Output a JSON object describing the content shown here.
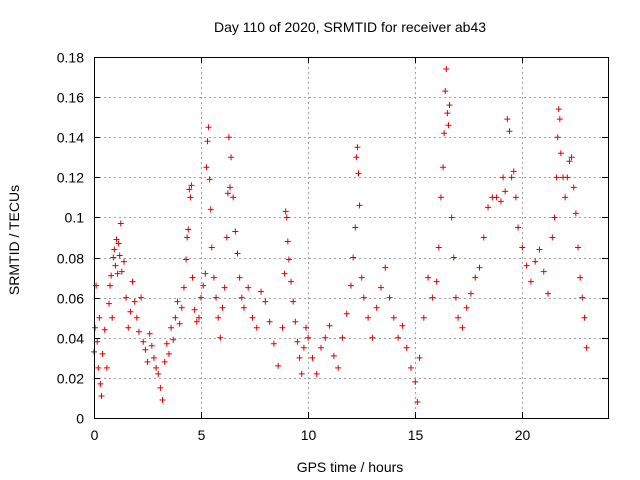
{
  "chart_data": {
    "type": "scatter",
    "title": "Day 110 of 2020, SRMTID for receiver ab43",
    "xlabel": "GPS time / hours",
    "ylabel": "SRMTID / TECUs",
    "xlim": [
      0,
      24
    ],
    "ylim": [
      0,
      0.18
    ],
    "xticks": [
      0,
      5,
      10,
      15,
      20
    ],
    "xtick_labels": [
      "0",
      "5",
      "10",
      "15",
      "20"
    ],
    "yticks": [
      0,
      0.02,
      0.04,
      0.06,
      0.08,
      0.1,
      0.12,
      0.14,
      0.16,
      0.18
    ],
    "ytick_labels": [
      "0",
      "0.02",
      "0.04",
      "0.06",
      "0.08",
      "0.1",
      "0.12",
      "0.14",
      "0.16",
      "0.18"
    ],
    "grid": true,
    "marker": "+",
    "color": "#e00000",
    "series": [
      {
        "name": "SRMTID",
        "points": [
          [
            0.0,
            0.033
          ],
          [
            0.05,
            0.045
          ],
          [
            0.1,
            0.066
          ],
          [
            0.15,
            0.038
          ],
          [
            0.2,
            0.025
          ],
          [
            0.25,
            0.05
          ],
          [
            0.3,
            0.017
          ],
          [
            0.35,
            0.011
          ],
          [
            0.4,
            0.032
          ],
          [
            0.5,
            0.044
          ],
          [
            0.6,
            0.025
          ],
          [
            0.7,
            0.057
          ],
          [
            0.75,
            0.066
          ],
          [
            0.8,
            0.071
          ],
          [
            0.85,
            0.05
          ],
          [
            0.9,
            0.08
          ],
          [
            0.95,
            0.084
          ],
          [
            1.0,
            0.076
          ],
          [
            1.05,
            0.089
          ],
          [
            1.1,
            0.072
          ],
          [
            1.15,
            0.087
          ],
          [
            1.2,
            0.081
          ],
          [
            1.25,
            0.097
          ],
          [
            1.3,
            0.073
          ],
          [
            1.4,
            0.078
          ],
          [
            1.5,
            0.06
          ],
          [
            1.6,
            0.045
          ],
          [
            1.7,
            0.053
          ],
          [
            1.8,
            0.068
          ],
          [
            1.9,
            0.058
          ],
          [
            2.0,
            0.05
          ],
          [
            2.1,
            0.043
          ],
          [
            2.2,
            0.06
          ],
          [
            2.3,
            0.038
          ],
          [
            2.4,
            0.034
          ],
          [
            2.5,
            0.028
          ],
          [
            2.6,
            0.042
          ],
          [
            2.7,
            0.036
          ],
          [
            2.8,
            0.03
          ],
          [
            2.9,
            0.025
          ],
          [
            3.0,
            0.022
          ],
          [
            3.1,
            0.015
          ],
          [
            3.2,
            0.009
          ],
          [
            3.3,
            0.028
          ],
          [
            3.4,
            0.037
          ],
          [
            3.5,
            0.032
          ],
          [
            3.6,
            0.045
          ],
          [
            3.7,
            0.039
          ],
          [
            3.8,
            0.05
          ],
          [
            3.9,
            0.058
          ],
          [
            4.0,
            0.047
          ],
          [
            4.1,
            0.055
          ],
          [
            4.2,
            0.065
          ],
          [
            4.3,
            0.079
          ],
          [
            4.35,
            0.09
          ],
          [
            4.4,
            0.094
          ],
          [
            4.45,
            0.114
          ],
          [
            4.5,
            0.11
          ],
          [
            4.55,
            0.116
          ],
          [
            4.6,
            0.07
          ],
          [
            4.7,
            0.054
          ],
          [
            4.8,
            0.048
          ],
          [
            4.9,
            0.05
          ],
          [
            5.0,
            0.06
          ],
          [
            5.1,
            0.066
          ],
          [
            5.2,
            0.072
          ],
          [
            5.25,
            0.125
          ],
          [
            5.3,
            0.138
          ],
          [
            5.35,
            0.145
          ],
          [
            5.4,
            0.119
          ],
          [
            5.45,
            0.104
          ],
          [
            5.5,
            0.085
          ],
          [
            5.6,
            0.07
          ],
          [
            5.7,
            0.06
          ],
          [
            5.8,
            0.05
          ],
          [
            5.9,
            0.04
          ],
          [
            6.0,
            0.055
          ],
          [
            6.1,
            0.065
          ],
          [
            6.2,
            0.09
          ],
          [
            6.25,
            0.112
          ],
          [
            6.3,
            0.14
          ],
          [
            6.35,
            0.115
          ],
          [
            6.4,
            0.13
          ],
          [
            6.5,
            0.11
          ],
          [
            6.6,
            0.093
          ],
          [
            6.7,
            0.082
          ],
          [
            6.8,
            0.07
          ],
          [
            6.9,
            0.06
          ],
          [
            7.0,
            0.055
          ],
          [
            7.2,
            0.065
          ],
          [
            7.4,
            0.05
          ],
          [
            7.6,
            0.045
          ],
          [
            7.8,
            0.063
          ],
          [
            8.0,
            0.058
          ],
          [
            8.2,
            0.048
          ],
          [
            8.4,
            0.037
          ],
          [
            8.6,
            0.026
          ],
          [
            8.8,
            0.045
          ],
          [
            8.9,
            0.072
          ],
          [
            8.95,
            0.103
          ],
          [
            9.0,
            0.1
          ],
          [
            9.05,
            0.088
          ],
          [
            9.1,
            0.079
          ],
          [
            9.2,
            0.068
          ],
          [
            9.3,
            0.058
          ],
          [
            9.4,
            0.048
          ],
          [
            9.5,
            0.038
          ],
          [
            9.6,
            0.03
          ],
          [
            9.7,
            0.022
          ],
          [
            9.8,
            0.035
          ],
          [
            9.9,
            0.045
          ],
          [
            10.0,
            0.04
          ],
          [
            10.2,
            0.03
          ],
          [
            10.4,
            0.022
          ],
          [
            10.6,
            0.035
          ],
          [
            10.8,
            0.04
          ],
          [
            11.0,
            0.046
          ],
          [
            11.2,
            0.031
          ],
          [
            11.4,
            0.025
          ],
          [
            11.6,
            0.04
          ],
          [
            11.8,
            0.052
          ],
          [
            12.0,
            0.066
          ],
          [
            12.1,
            0.08
          ],
          [
            12.2,
            0.095
          ],
          [
            12.25,
            0.13
          ],
          [
            12.3,
            0.135
          ],
          [
            12.35,
            0.122
          ],
          [
            12.4,
            0.106
          ],
          [
            12.5,
            0.07
          ],
          [
            12.6,
            0.06
          ],
          [
            12.8,
            0.05
          ],
          [
            13.0,
            0.04
          ],
          [
            13.2,
            0.055
          ],
          [
            13.4,
            0.065
          ],
          [
            13.6,
            0.075
          ],
          [
            13.8,
            0.06
          ],
          [
            14.0,
            0.05
          ],
          [
            14.2,
            0.04
          ],
          [
            14.4,
            0.046
          ],
          [
            14.6,
            0.035
          ],
          [
            14.8,
            0.025
          ],
          [
            15.0,
            0.018
          ],
          [
            15.1,
            0.008
          ],
          [
            15.2,
            0.03
          ],
          [
            15.4,
            0.05
          ],
          [
            15.6,
            0.07
          ],
          [
            15.8,
            0.06
          ],
          [
            16.0,
            0.068
          ],
          [
            16.1,
            0.085
          ],
          [
            16.2,
            0.11
          ],
          [
            16.3,
            0.125
          ],
          [
            16.35,
            0.142
          ],
          [
            16.4,
            0.163
          ],
          [
            16.45,
            0.174
          ],
          [
            16.5,
            0.152
          ],
          [
            16.55,
            0.146
          ],
          [
            16.6,
            0.156
          ],
          [
            16.7,
            0.1
          ],
          [
            16.8,
            0.08
          ],
          [
            16.9,
            0.06
          ],
          [
            17.0,
            0.05
          ],
          [
            17.2,
            0.045
          ],
          [
            17.4,
            0.055
          ],
          [
            17.6,
            0.062
          ],
          [
            17.8,
            0.07
          ],
          [
            18.0,
            0.075
          ],
          [
            18.2,
            0.09
          ],
          [
            18.4,
            0.105
          ],
          [
            18.6,
            0.11
          ],
          [
            18.8,
            0.11
          ],
          [
            19.0,
            0.108
          ],
          [
            19.1,
            0.12
          ],
          [
            19.2,
            0.113
          ],
          [
            19.3,
            0.149
          ],
          [
            19.4,
            0.143
          ],
          [
            19.5,
            0.12
          ],
          [
            19.6,
            0.123
          ],
          [
            19.7,
            0.11
          ],
          [
            19.8,
            0.095
          ],
          [
            20.0,
            0.085
          ],
          [
            20.2,
            0.076
          ],
          [
            20.4,
            0.068
          ],
          [
            20.6,
            0.078
          ],
          [
            20.8,
            0.084
          ],
          [
            21.0,
            0.073
          ],
          [
            21.2,
            0.062
          ],
          [
            21.4,
            0.09
          ],
          [
            21.5,
            0.1
          ],
          [
            21.6,
            0.12
          ],
          [
            21.65,
            0.14
          ],
          [
            21.7,
            0.154
          ],
          [
            21.75,
            0.149
          ],
          [
            21.8,
            0.132
          ],
          [
            21.9,
            0.12
          ],
          [
            22.0,
            0.11
          ],
          [
            22.1,
            0.12
          ],
          [
            22.2,
            0.128
          ],
          [
            22.3,
            0.13
          ],
          [
            22.4,
            0.115
          ],
          [
            22.5,
            0.102
          ],
          [
            22.6,
            0.085
          ],
          [
            22.7,
            0.07
          ],
          [
            22.8,
            0.06
          ],
          [
            22.9,
            0.05
          ],
          [
            23.0,
            0.035
          ]
        ]
      }
    ]
  }
}
